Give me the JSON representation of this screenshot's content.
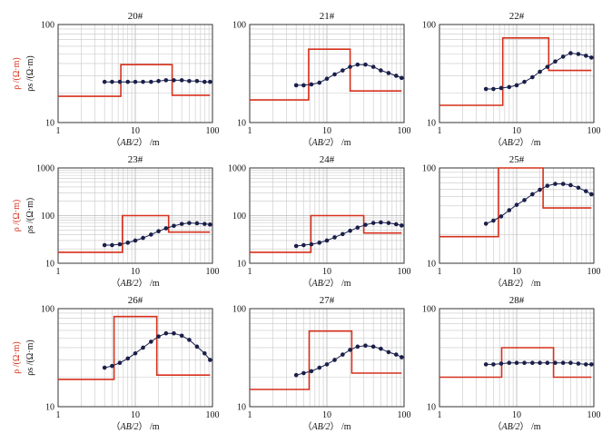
{
  "labels": {
    "xlabel_italic": "AB/2",
    "xlabel_unit": "/m",
    "ylabel_rho": "ρ /(Ω·m)",
    "ylabel_rho_alt": "ρ /(Ω·m)",
    "ylabel_rhos": "ρs /(Ω·m)"
  },
  "colors": {
    "model": "#d6301c",
    "measured": "#1a1f4a",
    "grid": "#c8c8c8",
    "frame": "#333333"
  },
  "chart_data": [
    {
      "type": "line",
      "title": "20#",
      "xscale": "log",
      "yscale": "log",
      "xlim": [
        1,
        100
      ],
      "ylim": [
        10,
        100
      ],
      "grid": true,
      "xticks": [
        "1",
        "10",
        "100"
      ],
      "yticks": [
        "10",
        "100"
      ],
      "model": {
        "name": "ρ",
        "x": [
          1,
          6.5,
          6.5,
          30,
          30,
          93
        ],
        "y": [
          18.5,
          18.5,
          39,
          39,
          19,
          19
        ]
      },
      "measured": {
        "name": "ρs",
        "x": [
          4,
          5,
          6.3,
          8,
          10,
          12.6,
          16,
          20,
          25,
          31.6,
          40,
          50,
          63,
          79,
          93
        ],
        "y": [
          26,
          26,
          26,
          26,
          26,
          26,
          26,
          26.5,
          27,
          27,
          27,
          26.5,
          26.5,
          26,
          26
        ]
      }
    },
    {
      "type": "line",
      "title": "21#",
      "xscale": "log",
      "yscale": "log",
      "xlim": [
        1,
        100
      ],
      "ylim": [
        10,
        100
      ],
      "grid": true,
      "xticks": [
        "1",
        "10",
        "100"
      ],
      "yticks": [
        "10",
        "100"
      ],
      "model": {
        "name": "ρ",
        "x": [
          1,
          5.8,
          5.8,
          20,
          20,
          93
        ],
        "y": [
          17,
          17,
          56,
          56,
          21,
          21
        ]
      },
      "measured": {
        "name": "ρs",
        "x": [
          4,
          5,
          6.3,
          8,
          10,
          12.6,
          16,
          20,
          25,
          31.6,
          40,
          50,
          63,
          79,
          93
        ],
        "y": [
          24,
          24,
          24.5,
          25.5,
          28,
          31,
          34,
          37,
          39,
          39,
          37,
          34,
          32,
          30,
          28.5
        ]
      }
    },
    {
      "type": "line",
      "title": "22#",
      "xscale": "log",
      "yscale": "log",
      "xlim": [
        1,
        100
      ],
      "ylim": [
        10,
        100
      ],
      "grid": true,
      "xticks": [
        "1",
        "10",
        "100"
      ],
      "yticks": [
        "10",
        "100"
      ],
      "model": {
        "name": "ρ",
        "x": [
          1,
          6.6,
          6.6,
          26,
          26,
          93
        ],
        "y": [
          15,
          15,
          73,
          73,
          34,
          34
        ]
      },
      "measured": {
        "name": "ρs",
        "x": [
          4,
          5,
          6.3,
          8,
          10,
          12.6,
          16,
          20,
          25,
          31.6,
          40,
          50,
          63,
          79,
          93
        ],
        "y": [
          22,
          22,
          22.5,
          23,
          24,
          26,
          29,
          33,
          37,
          42,
          47,
          51,
          50,
          48,
          46
        ]
      }
    },
    {
      "type": "line",
      "title": "23#",
      "xscale": "log",
      "yscale": "log",
      "xlim": [
        1,
        100
      ],
      "ylim": [
        10,
        1000
      ],
      "grid": true,
      "xticks": [
        "1",
        "10",
        "100"
      ],
      "yticks": [
        "10",
        "100",
        "1000"
      ],
      "model": {
        "name": "ρ",
        "x": [
          1,
          6.8,
          6.8,
          27,
          27,
          93
        ],
        "y": [
          17,
          17,
          100,
          100,
          45,
          45
        ]
      },
      "measured": {
        "name": "ρs",
        "x": [
          4,
          5,
          6.3,
          8,
          10,
          12.6,
          16,
          20,
          25,
          31.6,
          40,
          50,
          63,
          79,
          93
        ],
        "y": [
          24,
          24,
          25,
          27,
          30,
          34,
          40,
          47,
          54,
          61,
          67,
          70,
          69,
          67,
          65
        ]
      }
    },
    {
      "type": "line",
      "title": "24#",
      "xscale": "log",
      "yscale": "log",
      "xlim": [
        1,
        100
      ],
      "ylim": [
        10,
        1000
      ],
      "grid": true,
      "xticks": [
        "1",
        "10",
        "100"
      ],
      "yticks": [
        "10",
        "100",
        "1000"
      ],
      "model": {
        "name": "ρ",
        "x": [
          1,
          6.2,
          6.2,
          30,
          30,
          93
        ],
        "y": [
          17,
          17,
          100,
          100,
          43,
          43
        ]
      },
      "measured": {
        "name": "ρs",
        "x": [
          4,
          5,
          6.3,
          8,
          10,
          12.6,
          16,
          20,
          25,
          31.6,
          40,
          50,
          63,
          79,
          93
        ],
        "y": [
          23,
          24,
          25,
          27,
          30,
          35,
          41,
          48,
          56,
          64,
          70,
          72,
          70,
          66,
          62
        ]
      }
    },
    {
      "type": "line",
      "title": "25#",
      "xscale": "log",
      "yscale": "log",
      "xlim": [
        1,
        100
      ],
      "ylim": [
        10,
        100
      ],
      "grid": true,
      "xticks": [
        "1",
        "10",
        "100"
      ],
      "yticks": [
        "10",
        "100"
      ],
      "model": {
        "name": "ρ",
        "x": [
          1,
          5.8,
          5.8,
          22,
          22,
          93
        ],
        "y": [
          19,
          19,
          100,
          100,
          38,
          38
        ]
      },
      "measured": {
        "name": "ρs",
        "x": [
          4,
          5,
          6.3,
          8,
          10,
          12.6,
          16,
          20,
          25,
          31.6,
          40,
          50,
          63,
          79,
          93
        ],
        "y": [
          26,
          28,
          31,
          36,
          41,
          46,
          53,
          59,
          65,
          68,
          68,
          66,
          62,
          57,
          53
        ]
      }
    },
    {
      "type": "line",
      "title": "26#",
      "xscale": "log",
      "yscale": "log",
      "xlim": [
        1,
        100
      ],
      "ylim": [
        10,
        100
      ],
      "grid": true,
      "xticks": [
        "1",
        "10",
        "100"
      ],
      "yticks": [
        "10",
        "100"
      ],
      "model": {
        "name": "ρ",
        "x": [
          1,
          5.3,
          5.3,
          19,
          19,
          93
        ],
        "y": [
          19,
          19,
          83,
          83,
          21,
          21
        ]
      },
      "measured": {
        "name": "ρs",
        "x": [
          4,
          5,
          6.3,
          8,
          10,
          12.6,
          16,
          20,
          25,
          31.6,
          40,
          50,
          63,
          79,
          93
        ],
        "y": [
          25,
          26,
          28,
          31,
          35,
          40,
          46,
          52,
          56,
          56,
          53,
          48,
          41,
          35,
          30
        ]
      }
    },
    {
      "type": "line",
      "title": "27#",
      "xscale": "log",
      "yscale": "log",
      "xlim": [
        1,
        100
      ],
      "ylim": [
        10,
        100
      ],
      "grid": true,
      "xticks": [
        "1",
        "10",
        "100"
      ],
      "yticks": [
        "10",
        "100"
      ],
      "model": {
        "name": "ρ",
        "x": [
          1,
          5.9,
          5.9,
          21,
          21,
          93
        ],
        "y": [
          15,
          15,
          59,
          59,
          22,
          22
        ]
      },
      "measured": {
        "name": "ρs",
        "x": [
          4,
          5,
          6.3,
          8,
          10,
          12.6,
          16,
          20,
          25,
          31.6,
          40,
          50,
          63,
          79,
          93
        ],
        "y": [
          21,
          22,
          23,
          25,
          27,
          30,
          34,
          38,
          41,
          42,
          41,
          39,
          36,
          34,
          32
        ]
      }
    },
    {
      "type": "line",
      "title": "28#",
      "xscale": "log",
      "yscale": "log",
      "xlim": [
        1,
        100
      ],
      "ylim": [
        10,
        100
      ],
      "grid": true,
      "xticks": [
        "1",
        "10",
        "100"
      ],
      "yticks": [
        "10",
        "100"
      ],
      "model": {
        "name": "ρ",
        "x": [
          1,
          6.4,
          6.4,
          30,
          30,
          93
        ],
        "y": [
          20,
          20,
          40,
          40,
          20,
          20
        ]
      },
      "measured": {
        "name": "ρs",
        "x": [
          4,
          5,
          6.3,
          8,
          10,
          12.6,
          16,
          20,
          25,
          31.6,
          40,
          50,
          63,
          79,
          93
        ],
        "y": [
          27,
          27,
          27.5,
          28,
          28,
          28,
          28,
          28,
          28,
          28,
          28,
          28,
          27.5,
          27,
          27
        ]
      }
    }
  ]
}
